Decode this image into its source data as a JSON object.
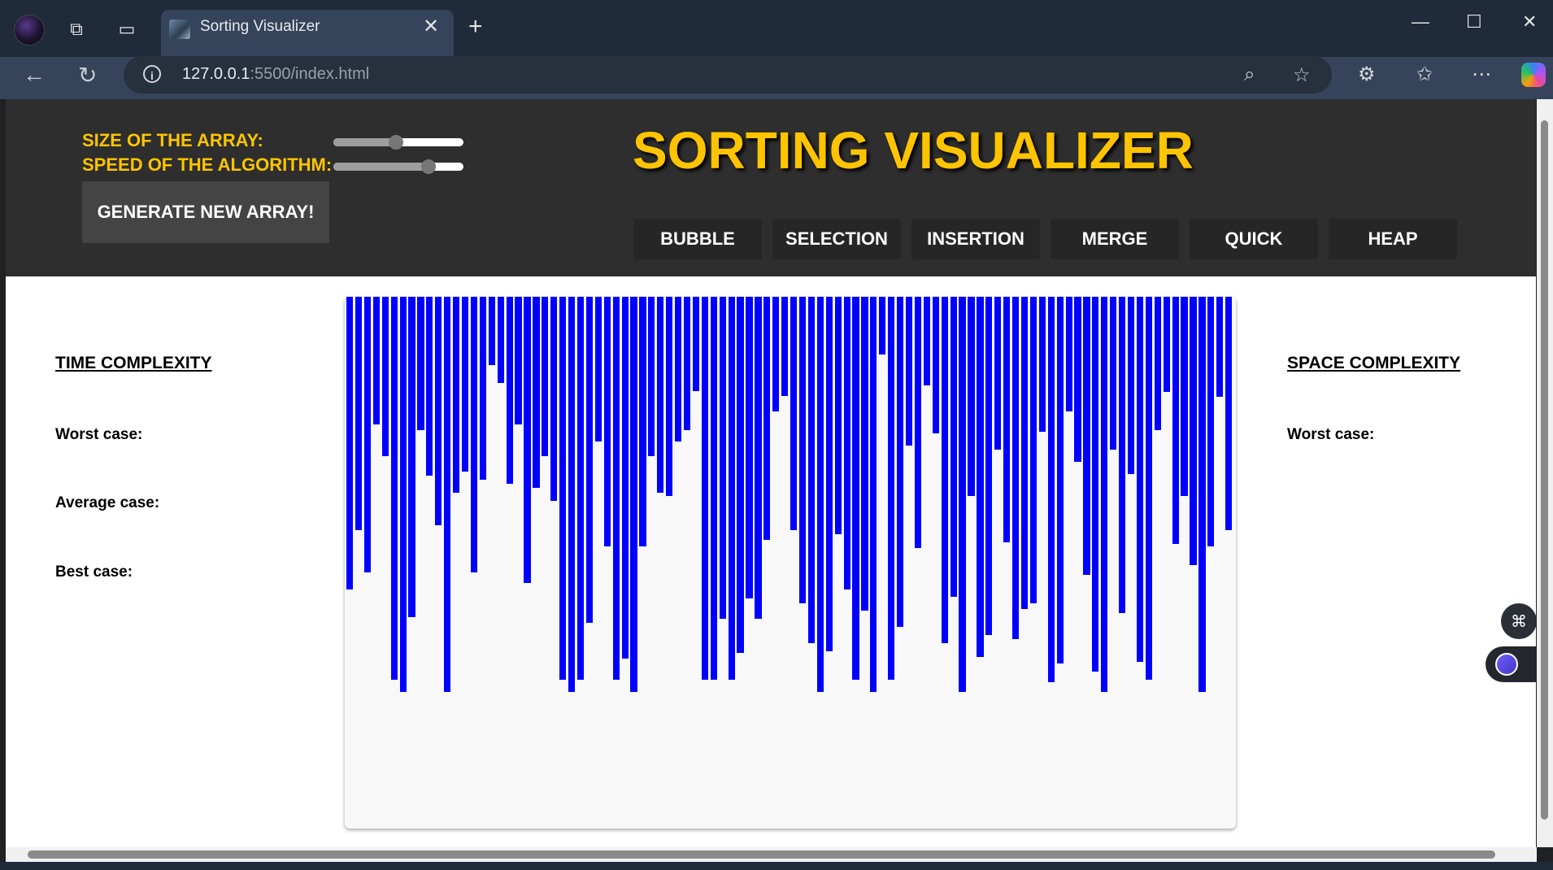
{
  "browser": {
    "tab_title": "Sorting Visualizer",
    "url_host": "127.0.0.1",
    "url_rest": ":5500/index.html"
  },
  "controls": {
    "size_label": "SIZE OF THE ARRAY:",
    "speed_label": "SPEED OF THE ALGORITHM:",
    "size_value_fraction": 0.48,
    "speed_value_fraction": 0.73,
    "generate_button": "GENERATE NEW ARRAY!"
  },
  "title": "SORTING VISUALIZER",
  "algorithms": [
    "BUBBLE",
    "SELECTION",
    "INSERTION",
    "MERGE",
    "QUICK",
    "HEAP"
  ],
  "time_complexity": {
    "heading": "TIME COMPLEXITY",
    "worst": "Worst case:",
    "average": "Average case:",
    "best": "Best case:"
  },
  "space_complexity": {
    "heading": "SPACE COMPLEXITY",
    "worst": "Worst case:"
  },
  "array": {
    "bar_color": "#0000ff",
    "max_value": 500,
    "values": [
      363,
      290,
      342,
      158,
      198,
      475,
      490,
      398,
      165,
      222,
      284,
      490,
      243,
      217,
      342,
      227,
      85,
      107,
      232,
      158,
      355,
      237,
      198,
      253,
      475,
      490,
      475,
      405,
      180,
      310,
      475,
      449,
      490,
      310,
      198,
      243,
      247,
      180,
      165,
      117,
      475,
      475,
      400,
      475,
      442,
      374,
      400,
      302,
      142,
      123,
      290,
      380,
      430,
      490,
      440,
      295,
      363,
      475,
      390,
      490,
      72,
      475,
      410,
      185,
      312,
      110,
      170,
      430,
      372,
      490,
      247,
      447,
      420,
      190,
      305,
      425,
      388,
      380,
      168,
      478,
      455,
      142,
      205,
      345,
      465,
      490,
      190,
      393,
      220,
      453,
      475,
      165,
      118,
      307,
      247,
      333,
      490,
      310,
      124,
      290
    ],
    "axis_max": 660
  }
}
